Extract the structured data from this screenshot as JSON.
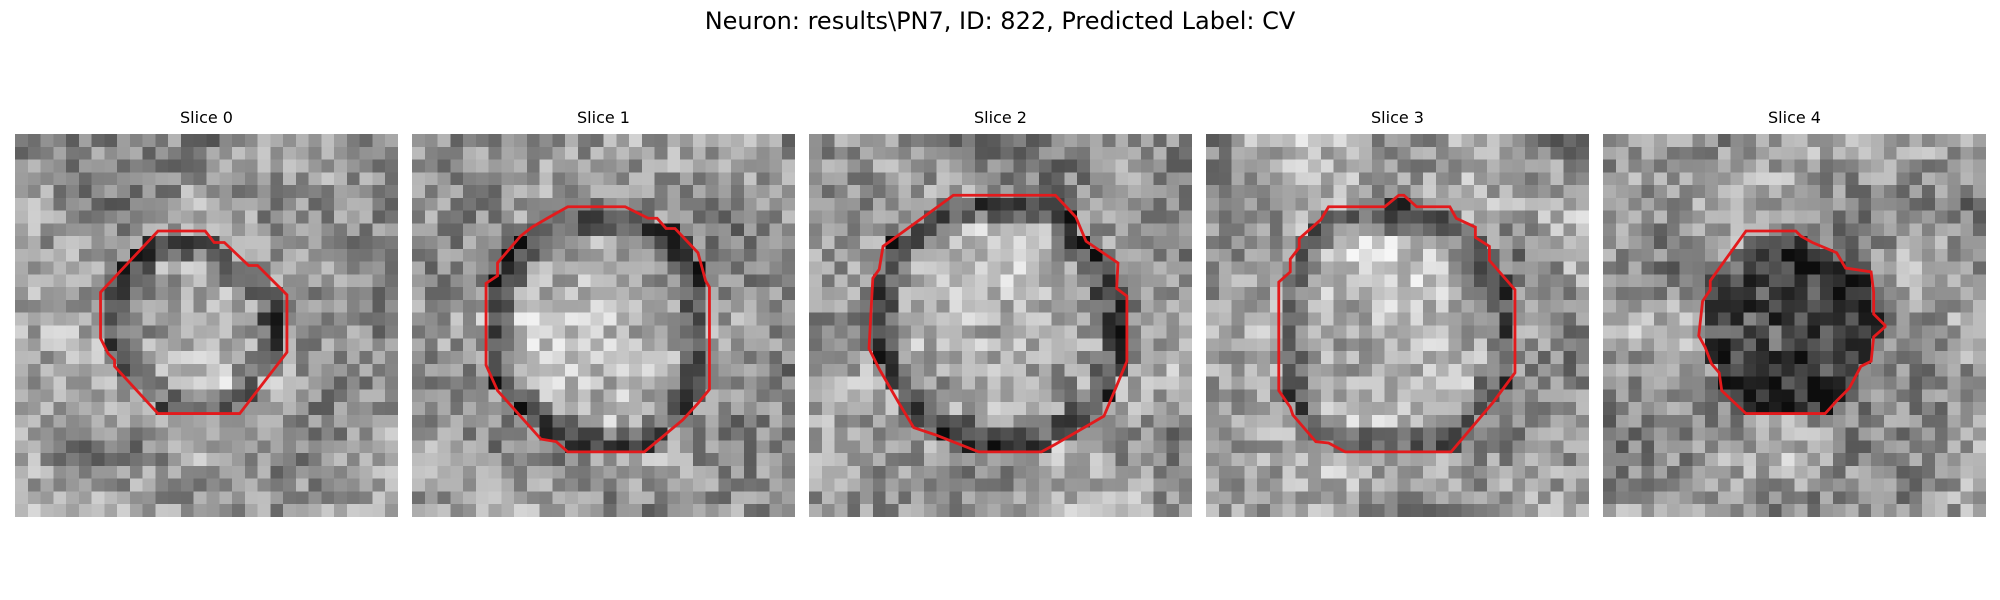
{
  "figure": {
    "title": "Neuron: results\\PN7, ID: 822, Predicted Label: CV"
  },
  "slices": [
    {
      "title": "Slice 0",
      "seed": 11,
      "ring": "bright",
      "ring_strength": 0.55
    },
    {
      "title": "Slice 1",
      "seed": 23,
      "ring": "dark",
      "ring_strength": 0.75
    },
    {
      "title": "Slice 2",
      "seed": 37,
      "ring": "dark",
      "ring_strength": 0.8
    },
    {
      "title": "Slice 3",
      "seed": 41,
      "ring": "dark",
      "ring_strength": 0.6
    },
    {
      "title": "Slice 4",
      "seed": 59,
      "ring": "fill-dark",
      "ring_strength": 0.7
    }
  ],
  "colors": {
    "outline": "#e31a1c",
    "background": "#ffffff"
  }
}
